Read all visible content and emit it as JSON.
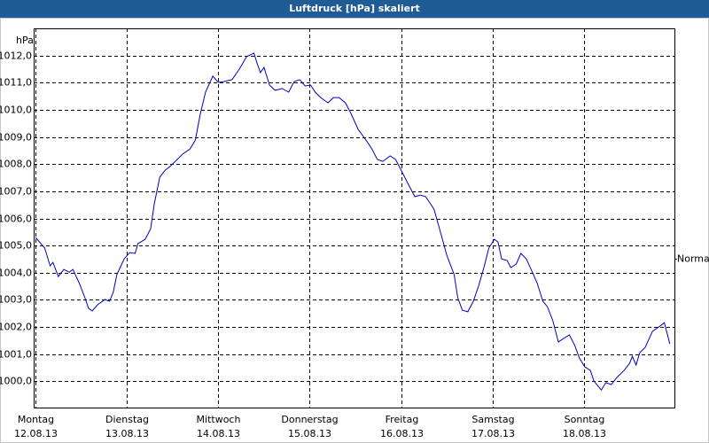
{
  "chart_data": {
    "type": "line",
    "title": "Luftdruck [hPa] skaliert",
    "y_label": "hPa",
    "xlim": [
      -0.02,
      7.0
    ],
    "ylim": [
      999,
      1013
    ],
    "xticks": [
      {
        "value": 0,
        "label": "Montag"
      },
      {
        "value": 1,
        "label": "Dienstag"
      },
      {
        "value": 2,
        "label": "Mittwoch"
      },
      {
        "value": 3,
        "label": "Donnerstag"
      },
      {
        "value": 4,
        "label": "Freitag"
      },
      {
        "value": 5,
        "label": "Samstag"
      },
      {
        "value": 6,
        "label": "Sonntag"
      }
    ],
    "xtick_dates": [
      "12.08.13",
      "13.08.13",
      "14.08.13",
      "15.08.13",
      "16.08.13",
      "17.08.13",
      "18.08.13"
    ],
    "yticks": [
      {
        "value": 1000,
        "label": "1000,0"
      },
      {
        "value": 1001,
        "label": "1001,0"
      },
      {
        "value": 1002,
        "label": "1002,0"
      },
      {
        "value": 1003,
        "label": "1003,0"
      },
      {
        "value": 1004,
        "label": "1004,0"
      },
      {
        "value": 1005,
        "label": "1005,0"
      },
      {
        "value": 1006,
        "label": "1006,0"
      },
      {
        "value": 1007,
        "label": "1007,0"
      },
      {
        "value": 1008,
        "label": "1008,0"
      },
      {
        "value": 1009,
        "label": "1009,0"
      },
      {
        "value": 1010,
        "label": "1010,0"
      },
      {
        "value": 1011,
        "label": "1011,0"
      },
      {
        "value": 1012,
        "label": "1012,0"
      }
    ],
    "grid": true,
    "reference": {
      "label": "Normal",
      "value": 1004.5
    },
    "color": "#0000c0",
    "x": [
      0.0,
      0.1,
      0.16,
      0.19,
      0.25,
      0.31,
      0.37,
      0.41,
      0.48,
      0.54,
      0.58,
      0.62,
      0.68,
      0.76,
      0.81,
      0.85,
      0.89,
      0.97,
      1.03,
      1.09,
      1.12,
      1.2,
      1.26,
      1.3,
      1.36,
      1.42,
      1.47,
      1.55,
      1.61,
      1.69,
      1.75,
      1.8,
      1.86,
      1.94,
      2.0,
      2.06,
      2.15,
      2.23,
      2.31,
      2.39,
      2.42,
      2.46,
      2.5,
      2.56,
      2.62,
      2.7,
      2.77,
      2.83,
      2.89,
      2.95,
      3.01,
      3.06,
      3.12,
      3.2,
      3.26,
      3.32,
      3.39,
      3.45,
      3.53,
      3.63,
      3.68,
      3.74,
      3.8,
      3.88,
      3.94,
      3.99,
      4.07,
      4.15,
      4.21,
      4.27,
      4.36,
      4.42,
      4.5,
      4.58,
      4.62,
      4.67,
      4.73,
      4.79,
      4.85,
      4.91,
      4.96,
      5.02,
      5.06,
      5.1,
      5.16,
      5.2,
      5.26,
      5.31,
      5.37,
      5.43,
      5.49,
      5.55,
      5.6,
      5.66,
      5.72,
      5.78,
      5.84,
      5.9,
      5.95,
      6.01,
      6.07,
      6.11,
      6.19,
      6.24,
      6.3,
      6.36,
      6.44,
      6.5,
      6.53,
      6.57,
      6.61,
      6.67,
      6.75,
      6.83,
      6.88,
      6.94
    ],
    "values": [
      1005.3,
      1004.91,
      1004.25,
      1004.38,
      1003.86,
      1004.12,
      1004.02,
      1004.12,
      1003.6,
      1003.08,
      1002.69,
      1002.59,
      1002.82,
      1003.01,
      1002.95,
      1003.27,
      1003.93,
      1004.51,
      1004.74,
      1004.71,
      1005.07,
      1005.23,
      1005.62,
      1006.54,
      1007.52,
      1007.78,
      1007.91,
      1008.17,
      1008.37,
      1008.56,
      1008.89,
      1009.8,
      1010.65,
      1011.24,
      1011.01,
      1011.04,
      1011.11,
      1011.5,
      1011.96,
      1012.09,
      1011.76,
      1011.37,
      1011.56,
      1010.91,
      1010.72,
      1010.78,
      1010.65,
      1011.04,
      1011.11,
      1010.88,
      1010.91,
      1010.65,
      1010.45,
      1010.26,
      1010.45,
      1010.45,
      1010.26,
      1009.87,
      1009.28,
      1008.82,
      1008.56,
      1008.17,
      1008.1,
      1008.3,
      1008.17,
      1007.84,
      1007.32,
      1006.8,
      1006.86,
      1006.8,
      1006.34,
      1005.62,
      1004.64,
      1003.93,
      1003.08,
      1002.62,
      1002.56,
      1002.95,
      1003.54,
      1004.25,
      1004.91,
      1005.23,
      1005.13,
      1004.51,
      1004.45,
      1004.19,
      1004.32,
      1004.71,
      1004.51,
      1004.06,
      1003.6,
      1002.95,
      1002.75,
      1002.23,
      1001.45,
      1001.58,
      1001.71,
      1001.32,
      1000.86,
      1000.53,
      1000.4,
      1000.01,
      999.68,
      999.95,
      999.88,
      1000.14,
      1000.4,
      1000.66,
      1000.92,
      1000.6,
      1001.05,
      1001.25,
      1001.84,
      1002.03,
      1002.16,
      1001.38
    ]
  }
}
